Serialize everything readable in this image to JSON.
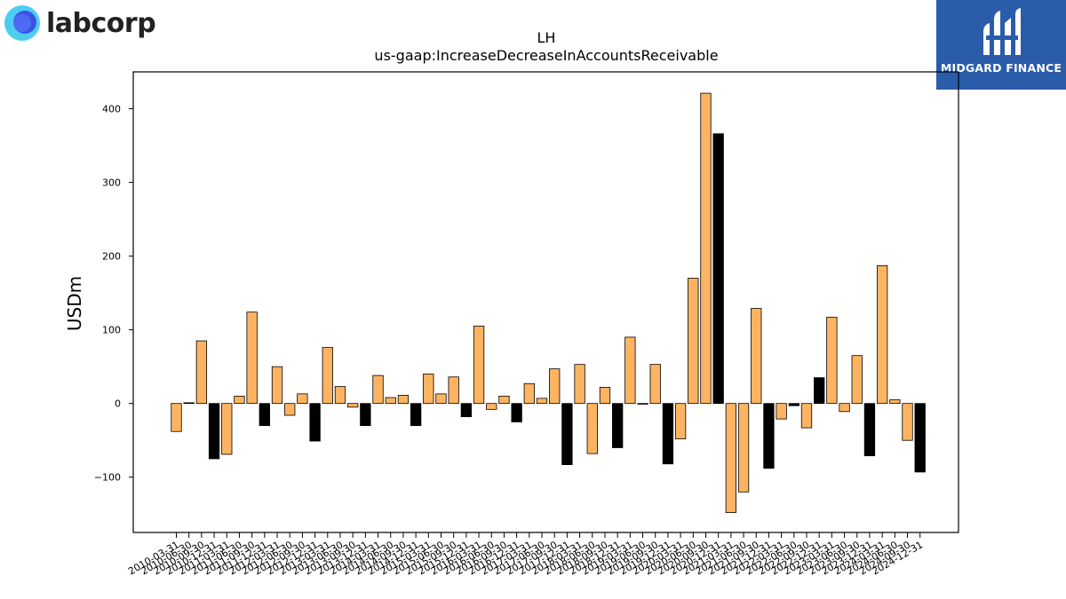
{
  "logos": {
    "left_text": "labcorp",
    "right_text": "MIDGARD FINANCE"
  },
  "colors": {
    "bar_orange": "#fdb462",
    "bar_black": "#000000",
    "right_logo_bg": "#2a5caa",
    "left_logo_outer": "#4ccdf0",
    "left_logo_inner": "#3a52e6"
  },
  "chart_data": {
    "type": "bar",
    "title": "LH",
    "subtitle": "us-gaap:IncreaseDecreaseInAccountsReceivable",
    "xlabel": "",
    "ylabel": "USDm",
    "ylim": [
      -175,
      450
    ],
    "yticks": [
      -100,
      0,
      100,
      200,
      300,
      400
    ],
    "grid": false,
    "categories": [
      "2010-03-31",
      "2010-06-30",
      "2010-09-30",
      "2010-12-31",
      "2011-03-31",
      "2011-06-30",
      "2011-09-30",
      "2011-12-31",
      "2012-03-31",
      "2012-06-30",
      "2012-09-30",
      "2012-12-31",
      "2013-03-31",
      "2013-06-30",
      "2013-09-30",
      "2013-12-31",
      "2014-03-31",
      "2014-06-30",
      "2014-09-30",
      "2014-12-31",
      "2015-03-31",
      "2015-06-30",
      "2015-09-30",
      "2015-12-31",
      "2016-03-31",
      "2016-06-30",
      "2016-09-30",
      "2016-12-31",
      "2017-03-31",
      "2017-06-30",
      "2017-09-30",
      "2017-12-31",
      "2018-03-31",
      "2018-06-30",
      "2018-09-30",
      "2018-12-31",
      "2019-03-31",
      "2019-06-30",
      "2019-09-30",
      "2019-12-31",
      "2020-03-31",
      "2020-06-30",
      "2020-09-30",
      "2020-12-31",
      "2021-03-31",
      "2021-06-30",
      "2021-09-30",
      "2021-12-31",
      "2022-03-31",
      "2022-06-30",
      "2022-09-30",
      "2022-12-31",
      "2023-03-31",
      "2023-06-30",
      "2023-09-30",
      "2023-12-31",
      "2024-03-31",
      "2024-06-30",
      "2024-09-30",
      "2024-12-31"
    ],
    "values": [
      -38,
      1,
      85,
      -75,
      -69,
      10,
      124,
      -30,
      50,
      -16,
      13,
      -51,
      76,
      23,
      -5,
      -30,
      38,
      8,
      11,
      -30,
      40,
      13,
      36,
      -18,
      105,
      -8,
      10,
      -25,
      27,
      7,
      47,
      -83,
      53,
      -68,
      22,
      -60,
      90,
      -1,
      53,
      -82,
      -48,
      170,
      421,
      366,
      -148,
      -120,
      129,
      -88,
      -21,
      -3,
      -33,
      35,
      117,
      -11,
      65,
      -71,
      187,
      5,
      -50,
      -93
    ],
    "bar_colors": [
      "orange",
      "black",
      "orange",
      "black",
      "orange",
      "orange",
      "orange",
      "black",
      "orange",
      "orange",
      "orange",
      "black",
      "orange",
      "orange",
      "orange",
      "black",
      "orange",
      "orange",
      "orange",
      "black",
      "orange",
      "orange",
      "orange",
      "black",
      "orange",
      "orange",
      "orange",
      "black",
      "orange",
      "orange",
      "orange",
      "black",
      "orange",
      "orange",
      "orange",
      "black",
      "orange",
      "orange",
      "orange",
      "black",
      "orange",
      "orange",
      "orange",
      "black",
      "orange",
      "orange",
      "orange",
      "black",
      "orange",
      "black",
      "orange",
      "black",
      "orange",
      "orange",
      "orange",
      "black",
      "orange",
      "orange",
      "orange",
      "black"
    ]
  }
}
